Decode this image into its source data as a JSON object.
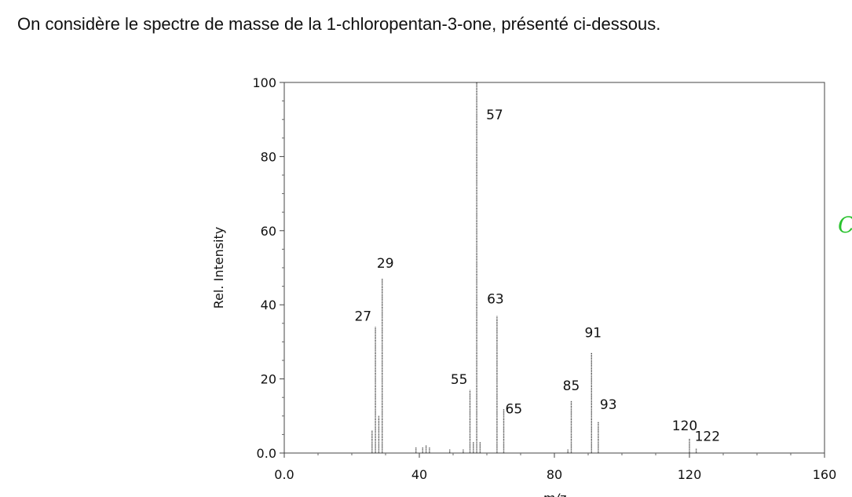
{
  "intro_text": "On considère le spectre de masse de la 1-chloropentan-3-one, présenté ci-dessous.",
  "handwritten_mark": "C",
  "colors": {
    "bars": "#333333",
    "handwriting": "#29c22e"
  },
  "chart_data": {
    "type": "bar",
    "title": "",
    "xlabel": "m/z",
    "ylabel": "Rel. Intensity",
    "xlim": [
      0,
      160
    ],
    "ylim": [
      0,
      100
    ],
    "x_ticks": [
      0,
      40,
      80,
      120,
      160
    ],
    "x_tick_labels": [
      "0.0",
      "40",
      "80",
      "120",
      "160"
    ],
    "y_ticks": [
      0,
      20,
      40,
      60,
      80,
      100
    ],
    "y_tick_labels": [
      "0.0",
      "20",
      "40",
      "60",
      "80",
      "100"
    ],
    "grid": false,
    "peaks": [
      {
        "mz": 26,
        "intensity": 6
      },
      {
        "mz": 27,
        "intensity": 34,
        "label": "27"
      },
      {
        "mz": 28,
        "intensity": 10
      },
      {
        "mz": 29,
        "intensity": 47,
        "label": "29"
      },
      {
        "mz": 39,
        "intensity": 1.5
      },
      {
        "mz": 41,
        "intensity": 1.5
      },
      {
        "mz": 42,
        "intensity": 2
      },
      {
        "mz": 43,
        "intensity": 1.5
      },
      {
        "mz": 49,
        "intensity": 1
      },
      {
        "mz": 53,
        "intensity": 1
      },
      {
        "mz": 55,
        "intensity": 17,
        "label": "55"
      },
      {
        "mz": 56,
        "intensity": 3
      },
      {
        "mz": 57,
        "intensity": 100,
        "label": "57"
      },
      {
        "mz": 58,
        "intensity": 3
      },
      {
        "mz": 63,
        "intensity": 37,
        "label": "63"
      },
      {
        "mz": 65,
        "intensity": 12,
        "label": "65"
      },
      {
        "mz": 84,
        "intensity": 1
      },
      {
        "mz": 85,
        "intensity": 14,
        "label": "85"
      },
      {
        "mz": 91,
        "intensity": 27,
        "label": "91"
      },
      {
        "mz": 93,
        "intensity": 8.5,
        "label": "93"
      },
      {
        "mz": 120,
        "intensity": 4,
        "label": "120"
      },
      {
        "mz": 122,
        "intensity": 1.2,
        "label": "122"
      }
    ]
  }
}
